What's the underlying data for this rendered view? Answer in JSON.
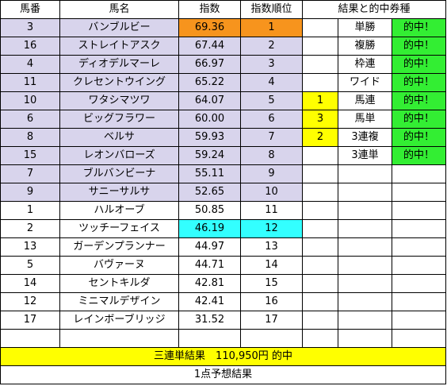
{
  "headers": {
    "num": "馬番",
    "name": "馬名",
    "index": "指数",
    "rank": "指数順位",
    "result": "結果と的中券種"
  },
  "horses": [
    {
      "num": "3",
      "name": "バンブルビー",
      "index": "69.36",
      "rank": "1"
    },
    {
      "num": "16",
      "name": "ストレイトアスク",
      "index": "67.44",
      "rank": "2"
    },
    {
      "num": "4",
      "name": "ディオデルマーレ",
      "index": "66.97",
      "rank": "3"
    },
    {
      "num": "11",
      "name": "クレセントウイング",
      "index": "65.22",
      "rank": "4"
    },
    {
      "num": "10",
      "name": "ワタシマツワ",
      "index": "64.07",
      "rank": "5"
    },
    {
      "num": "6",
      "name": "ビッグフラワー",
      "index": "60.00",
      "rank": "6"
    },
    {
      "num": "8",
      "name": "ベルサ",
      "index": "59.93",
      "rank": "7"
    },
    {
      "num": "15",
      "name": "レオンバローズ",
      "index": "59.24",
      "rank": "8"
    },
    {
      "num": "7",
      "name": "ブルバンビーナ",
      "index": "55.11",
      "rank": "9"
    },
    {
      "num": "9",
      "name": "サニーサルサ",
      "index": "52.65",
      "rank": "10"
    },
    {
      "num": "1",
      "name": "ハルオーブ",
      "index": "50.85",
      "rank": "11"
    },
    {
      "num": "2",
      "name": "ツッチーフェイス",
      "index": "46.19",
      "rank": "12"
    },
    {
      "num": "13",
      "name": "ガーデンプランナー",
      "index": "44.97",
      "rank": "13"
    },
    {
      "num": "5",
      "name": "バヴァーヌ",
      "index": "44.71",
      "rank": "14"
    },
    {
      "num": "14",
      "name": "セントキルダ",
      "index": "42.81",
      "rank": "15"
    },
    {
      "num": "12",
      "name": "ミニマルデザイン",
      "index": "42.41",
      "rank": "16"
    },
    {
      "num": "17",
      "name": "レインボーブリッジ",
      "index": "31.52",
      "rank": "17"
    }
  ],
  "results": [
    {
      "place": "",
      "bet": "単勝",
      "hit": "的中！"
    },
    {
      "place": "",
      "bet": "複勝",
      "hit": "的中！"
    },
    {
      "place": "",
      "bet": "枠連",
      "hit": "的中！"
    },
    {
      "place": "",
      "bet": "ワイド",
      "hit": "的中！"
    },
    {
      "place": "1",
      "bet": "馬連",
      "hit": "的中！"
    },
    {
      "place": "3",
      "bet": "馬単",
      "hit": "的中！"
    },
    {
      "place": "2",
      "bet": "3連複",
      "hit": "的中！"
    },
    {
      "place": "",
      "bet": "3連単",
      "hit": "的中！"
    }
  ],
  "summary": "三連単結果　110,950円 的中",
  "footer": "1点予想結果",
  "colors": {
    "highlight_top_rows": "#d8d4ec",
    "top_index": "#f7941d",
    "low_highlight": "#33ffff",
    "place_marker": "#ffff00",
    "hit": "#33ee33",
    "summary_bar": "#ffff00"
  }
}
